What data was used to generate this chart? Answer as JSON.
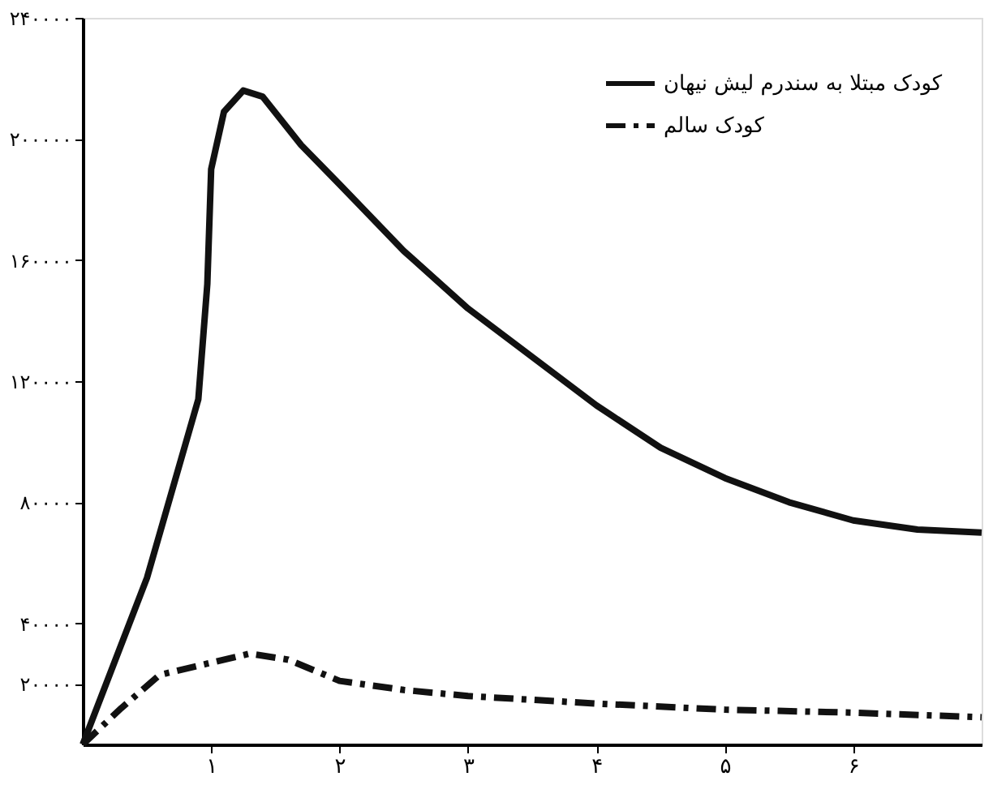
{
  "chart_data": {
    "type": "line",
    "xlim": [
      0,
      7
    ],
    "xticks": [
      {
        "value": 1,
        "label": "۱"
      },
      {
        "value": 2,
        "label": "۲"
      },
      {
        "value": 3,
        "label": "۳"
      },
      {
        "value": 4,
        "label": "۴"
      },
      {
        "value": 5,
        "label": "۵"
      },
      {
        "value": 6,
        "label": "۶"
      }
    ],
    "ylim": [
      0,
      240000
    ],
    "yticks": [
      {
        "value": 20000,
        "label": "۲۰۰۰۰"
      },
      {
        "value": 40000,
        "label": "۴۰۰۰۰"
      },
      {
        "value": 80000,
        "label": "۸۰۰۰۰"
      },
      {
        "value": 120000,
        "label": "۱۲۰۰۰۰"
      },
      {
        "value": 160000,
        "label": "۱۶۰۰۰۰"
      },
      {
        "value": 200000,
        "label": "۲۰۰۰۰۰"
      },
      {
        "value": 240000,
        "label": "۲۴۰۰۰۰"
      }
    ],
    "grid": false,
    "legend": "top right",
    "marker": "none",
    "series": [
      {
        "name": "کودک مبتلا به سندرم لیش نیهان",
        "color": "#111111",
        "line_style": "solid",
        "x": [
          0,
          0.5,
          0.9,
          0.97,
          1.0,
          1.1,
          1.25,
          1.4,
          1.7,
          2,
          2.5,
          3,
          3.5,
          4,
          4.5,
          5,
          5.5,
          6,
          6.5,
          7
        ],
        "values": [
          0,
          55000,
          114000,
          152000,
          190000,
          209000,
          216000,
          214000,
          198000,
          185000,
          163000,
          144000,
          128000,
          112000,
          98000,
          88000,
          80000,
          74000,
          71000,
          70000
        ]
      },
      {
        "name": "کودک سالم",
        "color": "#111111",
        "line_style": "dashdot",
        "x": [
          0,
          0.3,
          0.6,
          1.0,
          1.3,
          1.6,
          2,
          2.5,
          3,
          4,
          5,
          6,
          7
        ],
        "values": [
          0,
          12000,
          23000,
          27000,
          30000,
          28000,
          21000,
          18000,
          16000,
          13500,
          11500,
          10500,
          9000
        ]
      }
    ]
  }
}
